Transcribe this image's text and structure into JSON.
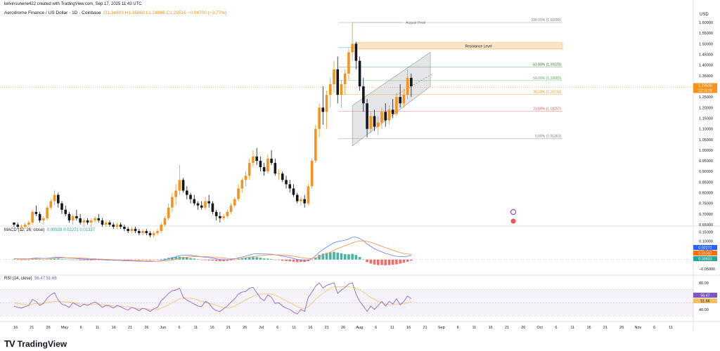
{
  "header": {
    "attribution": "kelvinsunene422 created with TradingView.com, Sep 17, 2025 11:43 UTC"
  },
  "symbol": {
    "name": "Aerodrome Finance / US Dollar · 1D · Coinbase",
    "ohlc": "O1.34803 H1.35869 L1.24968 C1.29516 −0.04700 (−3.77%)"
  },
  "currency": "USD",
  "colors": {
    "up": "#f7931a",
    "down": "#131722",
    "macd": "#5b7fff",
    "signal": "#ff8a3d",
    "hist_pos": "#26a69a",
    "hist_neg": "#ef5350",
    "rsi": "#7e57c2",
    "rsi_ma": "#f4c265"
  },
  "price_axis": [
    "1.60000",
    "1.55000",
    "1.50000",
    "1.45000",
    "1.40000",
    "1.35000",
    "1.30000",
    "1.25000",
    "1.20000",
    "1.15000",
    "1.10000",
    "1.05000",
    "1.00000",
    "0.95000",
    "0.90000",
    "0.85000",
    "0.80000",
    "0.75000",
    "0.70000",
    "0.65000"
  ],
  "current_price": {
    "price": "1.29516",
    "countdown": "12:16:18"
  },
  "fib": [
    {
      "label": "100.00% (1.60000)",
      "color": "#787b86"
    },
    {
      "label": "78.60% (1.48328)",
      "color": "#26a69a"
    },
    {
      "label": "61.80% (1.39129)",
      "color": "#2e7d32"
    },
    {
      "label": "50.00% (1.32682)",
      "color": "#4caf50"
    },
    {
      "label": "38.20% (1.26214)",
      "color": "#f7931a"
    },
    {
      "label": "23.60% (1.18257)",
      "color": "#ef5350"
    },
    {
      "label": "0.00% (1.05363)",
      "color": "#787b86"
    }
  ],
  "annotations": {
    "august_peak": "August Peak",
    "resistance": "Resistance Level"
  },
  "macd": {
    "label": "MACD (12, 26, close)",
    "values": "0.00933  0.02271  0.01337",
    "axis": [
      "0.15000",
      "0.10000",
      "0.05000",
      "0.00000",
      "−0.05000"
    ],
    "tags": [
      "0.02271",
      "0.01337",
      "0.00933"
    ]
  },
  "rsi": {
    "label": "RSI (14, close)",
    "values": "56.47  51.66",
    "axis": [
      "80.00",
      "60.00",
      "40.00"
    ],
    "tags": [
      "56.47",
      "51.66"
    ]
  },
  "time_axis": [
    "16",
    "21",
    "26",
    "May",
    "6",
    "11",
    "16",
    "21",
    "26",
    "Jun",
    "6",
    "11",
    "16",
    "21",
    "26",
    "Jul",
    "6",
    "11",
    "16",
    "21",
    "26",
    "Aug",
    "6",
    "11",
    "16",
    "21",
    "Sep",
    "6",
    "11",
    "16",
    "21",
    "26",
    "Oct",
    "6",
    "11",
    "16",
    "21",
    "26",
    "Nov",
    "6",
    "11"
  ],
  "footer": {
    "brand": "TradingView"
  },
  "chart_data": {
    "type": "candlestick",
    "title": "Aerodrome Finance / US Dollar · 1D · Coinbase",
    "ylim": [
      0.65,
      1.62
    ],
    "candles": [
      [
        0.66,
        0.66,
        0.64,
        0.65
      ],
      [
        0.65,
        0.66,
        0.63,
        0.64
      ],
      [
        0.64,
        0.65,
        0.62,
        0.64
      ],
      [
        0.64,
        0.66,
        0.63,
        0.65
      ],
      [
        0.65,
        0.67,
        0.64,
        0.66
      ],
      [
        0.66,
        0.72,
        0.65,
        0.71
      ],
      [
        0.71,
        0.74,
        0.69,
        0.7
      ],
      [
        0.7,
        0.71,
        0.66,
        0.67
      ],
      [
        0.67,
        0.69,
        0.65,
        0.68
      ],
      [
        0.68,
        0.74,
        0.67,
        0.73
      ],
      [
        0.73,
        0.77,
        0.72,
        0.76
      ],
      [
        0.76,
        0.81,
        0.74,
        0.79
      ],
      [
        0.79,
        0.8,
        0.73,
        0.75
      ],
      [
        0.75,
        0.76,
        0.7,
        0.72
      ],
      [
        0.72,
        0.74,
        0.69,
        0.7
      ],
      [
        0.7,
        0.71,
        0.66,
        0.67
      ],
      [
        0.67,
        0.7,
        0.65,
        0.69
      ],
      [
        0.69,
        0.72,
        0.67,
        0.68
      ],
      [
        0.68,
        0.7,
        0.65,
        0.66
      ],
      [
        0.66,
        0.68,
        0.64,
        0.67
      ],
      [
        0.67,
        0.68,
        0.65,
        0.66
      ],
      [
        0.66,
        0.68,
        0.64,
        0.67
      ],
      [
        0.67,
        0.69,
        0.66,
        0.68
      ],
      [
        0.68,
        0.7,
        0.66,
        0.67
      ],
      [
        0.67,
        0.68,
        0.64,
        0.65
      ],
      [
        0.65,
        0.67,
        0.64,
        0.66
      ],
      [
        0.66,
        0.67,
        0.64,
        0.65
      ],
      [
        0.65,
        0.66,
        0.63,
        0.64
      ],
      [
        0.64,
        0.66,
        0.63,
        0.65
      ],
      [
        0.65,
        0.66,
        0.63,
        0.64
      ],
      [
        0.64,
        0.65,
        0.62,
        0.63
      ],
      [
        0.63,
        0.64,
        0.61,
        0.62
      ],
      [
        0.62,
        0.64,
        0.61,
        0.63
      ],
      [
        0.63,
        0.64,
        0.61,
        0.62
      ],
      [
        0.62,
        0.63,
        0.6,
        0.61
      ],
      [
        0.61,
        0.63,
        0.6,
        0.62
      ],
      [
        0.62,
        0.63,
        0.6,
        0.61
      ],
      [
        0.61,
        0.62,
        0.59,
        0.6
      ],
      [
        0.6,
        0.62,
        0.59,
        0.61
      ],
      [
        0.61,
        0.63,
        0.6,
        0.62
      ],
      [
        0.62,
        0.66,
        0.61,
        0.65
      ],
      [
        0.65,
        0.69,
        0.64,
        0.68
      ],
      [
        0.68,
        0.75,
        0.67,
        0.73
      ],
      [
        0.73,
        0.8,
        0.71,
        0.78
      ],
      [
        0.78,
        0.84,
        0.74,
        0.81
      ],
      [
        0.81,
        0.93,
        0.79,
        0.86
      ],
      [
        0.86,
        0.87,
        0.8,
        0.81
      ],
      [
        0.81,
        0.83,
        0.77,
        0.79
      ],
      [
        0.79,
        0.8,
        0.75,
        0.77
      ],
      [
        0.77,
        0.79,
        0.74,
        0.75
      ],
      [
        0.75,
        0.76,
        0.72,
        0.74
      ],
      [
        0.74,
        0.76,
        0.72,
        0.73
      ],
      [
        0.73,
        0.78,
        0.72,
        0.76
      ],
      [
        0.76,
        0.79,
        0.73,
        0.75
      ],
      [
        0.75,
        0.76,
        0.7,
        0.71
      ],
      [
        0.71,
        0.72,
        0.67,
        0.69
      ],
      [
        0.69,
        0.71,
        0.66,
        0.68
      ],
      [
        0.68,
        0.7,
        0.67,
        0.69
      ],
      [
        0.69,
        0.72,
        0.68,
        0.71
      ],
      [
        0.71,
        0.75,
        0.7,
        0.74
      ],
      [
        0.74,
        0.78,
        0.73,
        0.77
      ],
      [
        0.77,
        0.84,
        0.76,
        0.82
      ],
      [
        0.82,
        0.87,
        0.8,
        0.86
      ],
      [
        0.86,
        0.9,
        0.83,
        0.88
      ],
      [
        0.88,
        0.96,
        0.86,
        0.94
      ],
      [
        0.94,
        1.0,
        0.92,
        0.97
      ],
      [
        0.97,
        1.01,
        0.93,
        0.95
      ],
      [
        0.95,
        0.97,
        0.9,
        0.92
      ],
      [
        0.92,
        0.94,
        0.88,
        0.9
      ],
      [
        0.9,
        0.98,
        0.89,
        0.96
      ],
      [
        0.96,
        1.0,
        0.93,
        0.94
      ],
      [
        0.94,
        0.96,
        0.88,
        0.89
      ],
      [
        0.89,
        0.91,
        0.86,
        0.89
      ],
      [
        0.89,
        0.9,
        0.85,
        0.86
      ],
      [
        0.86,
        0.88,
        0.82,
        0.84
      ],
      [
        0.84,
        0.86,
        0.8,
        0.82
      ],
      [
        0.82,
        0.84,
        0.78,
        0.79
      ],
      [
        0.79,
        0.8,
        0.75,
        0.76
      ],
      [
        0.76,
        0.78,
        0.74,
        0.77
      ],
      [
        0.77,
        0.79,
        0.73,
        0.75
      ],
      [
        0.75,
        0.84,
        0.74,
        0.83
      ],
      [
        0.83,
        0.96,
        0.82,
        0.95
      ],
      [
        0.95,
        1.12,
        0.94,
        1.1
      ],
      [
        1.1,
        1.22,
        1.06,
        1.2
      ],
      [
        1.2,
        1.3,
        1.12,
        1.18
      ],
      [
        1.18,
        1.28,
        1.1,
        1.26
      ],
      [
        1.26,
        1.34,
        1.2,
        1.31
      ],
      [
        1.31,
        1.42,
        1.27,
        1.38
      ],
      [
        1.38,
        1.44,
        1.22,
        1.26
      ],
      [
        1.26,
        1.33,
        1.2,
        1.31
      ],
      [
        1.31,
        1.38,
        1.26,
        1.36
      ],
      [
        1.36,
        1.48,
        1.33,
        1.46
      ],
      [
        1.46,
        1.6,
        1.42,
        1.5
      ],
      [
        1.5,
        1.51,
        1.38,
        1.42
      ],
      [
        1.42,
        1.44,
        1.28,
        1.3
      ],
      [
        1.3,
        1.34,
        1.18,
        1.22
      ],
      [
        1.22,
        1.24,
        1.06,
        1.1
      ],
      [
        1.1,
        1.18,
        1.08,
        1.16
      ],
      [
        1.16,
        1.19,
        1.09,
        1.11
      ],
      [
        1.11,
        1.16,
        1.07,
        1.13
      ],
      [
        1.13,
        1.2,
        1.1,
        1.18
      ],
      [
        1.18,
        1.22,
        1.11,
        1.14
      ],
      [
        1.14,
        1.21,
        1.12,
        1.19
      ],
      [
        1.19,
        1.24,
        1.15,
        1.17
      ],
      [
        1.17,
        1.27,
        1.16,
        1.25
      ],
      [
        1.25,
        1.31,
        1.2,
        1.22
      ],
      [
        1.22,
        1.29,
        1.2,
        1.26
      ],
      [
        1.26,
        1.38,
        1.24,
        1.34
      ],
      [
        1.34,
        1.36,
        1.25,
        1.3
      ]
    ],
    "macd_line": [
      0.005,
      0.004,
      0.003,
      0.003,
      0.004,
      0.006,
      0.008,
      0.007,
      0.006,
      0.007,
      0.009,
      0.012,
      0.013,
      0.012,
      0.01,
      0.008,
      0.007,
      0.006,
      0.004,
      0.003,
      0.002,
      0.001,
      0.001,
      0.0,
      -0.001,
      -0.002,
      -0.003,
      -0.004,
      -0.004,
      -0.005,
      -0.006,
      -0.007,
      -0.007,
      -0.008,
      -0.009,
      -0.009,
      -0.01,
      -0.011,
      -0.01,
      -0.009,
      -0.006,
      -0.002,
      0.004,
      0.01,
      0.016,
      0.022,
      0.024,
      0.024,
      0.023,
      0.021,
      0.018,
      0.015,
      0.013,
      0.011,
      0.008,
      0.004,
      0.001,
      -0.001,
      -0.001,
      0.001,
      0.004,
      0.009,
      0.014,
      0.019,
      0.025,
      0.03,
      0.032,
      0.032,
      0.03,
      0.03,
      0.029,
      0.026,
      0.023,
      0.019,
      0.015,
      0.011,
      0.006,
      0.001,
      -0.002,
      -0.005,
      -0.003,
      0.005,
      0.02,
      0.04,
      0.055,
      0.068,
      0.08,
      0.093,
      0.098,
      0.102,
      0.106,
      0.112,
      0.122,
      0.122,
      0.115,
      0.103,
      0.085,
      0.072,
      0.06,
      0.05,
      0.042,
      0.034,
      0.028,
      0.022,
      0.018,
      0.016,
      0.016,
      0.018,
      0.023
    ],
    "signal_line": [
      0.004,
      0.004,
      0.004,
      0.004,
      0.004,
      0.004,
      0.005,
      0.005,
      0.006,
      0.006,
      0.006,
      0.007,
      0.008,
      0.009,
      0.009,
      0.009,
      0.009,
      0.008,
      0.008,
      0.007,
      0.006,
      0.005,
      0.004,
      0.003,
      0.002,
      0.001,
      0.0,
      -0.001,
      -0.002,
      -0.003,
      -0.003,
      -0.004,
      -0.005,
      -0.006,
      -0.006,
      -0.007,
      -0.008,
      -0.008,
      -0.009,
      -0.009,
      -0.008,
      -0.007,
      -0.005,
      -0.002,
      0.002,
      0.006,
      0.01,
      0.013,
      0.015,
      0.016,
      0.017,
      0.016,
      0.016,
      0.015,
      0.014,
      0.012,
      0.01,
      0.008,
      0.006,
      0.005,
      0.005,
      0.006,
      0.007,
      0.01,
      0.013,
      0.016,
      0.019,
      0.022,
      0.024,
      0.025,
      0.026,
      0.026,
      0.026,
      0.025,
      0.023,
      0.021,
      0.018,
      0.015,
      0.011,
      0.008,
      0.006,
      0.006,
      0.009,
      0.015,
      0.023,
      0.032,
      0.041,
      0.051,
      0.06,
      0.068,
      0.076,
      0.083,
      0.091,
      0.097,
      0.101,
      0.102,
      0.099,
      0.094,
      0.087,
      0.08,
      0.072,
      0.065,
      0.058,
      0.051,
      0.044,
      0.038,
      0.033,
      0.03,
      0.029
    ],
    "rsi_line": [
      45,
      43,
      42,
      44,
      46,
      55,
      52,
      46,
      49,
      57,
      62,
      65,
      54,
      48,
      46,
      43,
      50,
      47,
      44,
      48,
      46,
      49,
      51,
      48,
      43,
      46,
      45,
      42,
      46,
      44,
      41,
      39,
      43,
      41,
      38,
      42,
      40,
      37,
      41,
      43,
      53,
      58,
      64,
      68,
      69,
      72,
      58,
      54,
      51,
      48,
      45,
      44,
      52,
      49,
      42,
      38,
      37,
      41,
      45,
      51,
      56,
      63,
      66,
      67,
      72,
      73,
      65,
      57,
      53,
      62,
      58,
      49,
      50,
      45,
      42,
      40,
      36,
      33,
      40,
      37,
      58,
      66,
      75,
      80,
      72,
      76,
      78,
      80,
      64,
      69,
      73,
      78,
      80,
      63,
      52,
      45,
      37,
      45,
      40,
      46,
      52,
      45,
      52,
      48,
      56,
      47,
      52,
      60,
      56
    ],
    "rsi_ma": [
      50,
      49,
      48,
      47,
      47,
      48,
      49,
      49,
      49,
      50,
      51,
      52,
      52,
      52,
      51,
      51,
      50,
      49,
      48,
      48,
      47,
      47,
      48,
      47,
      47,
      47,
      46,
      45,
      45,
      45,
      44,
      44,
      43,
      42,
      41,
      41,
      41,
      40,
      40,
      40,
      42,
      44,
      47,
      50,
      53,
      56,
      57,
      57,
      57,
      56,
      54,
      52,
      51,
      49,
      48,
      46,
      44,
      43,
      42,
      43,
      45,
      48,
      51,
      54,
      57,
      60,
      62,
      63,
      63,
      63,
      63,
      61,
      59,
      56,
      53,
      50,
      47,
      44,
      42,
      41,
      44,
      49,
      55,
      60,
      64,
      68,
      72,
      74,
      74,
      74,
      74,
      74,
      73,
      72,
      69,
      66,
      62,
      58,
      55,
      52,
      50,
      48,
      47,
      47,
      48,
      48,
      49,
      50,
      51
    ],
    "fib_levels": [
      1.6,
      1.48328,
      1.39129,
      1.32682,
      1.26214,
      1.18257,
      1.05363
    ]
  }
}
